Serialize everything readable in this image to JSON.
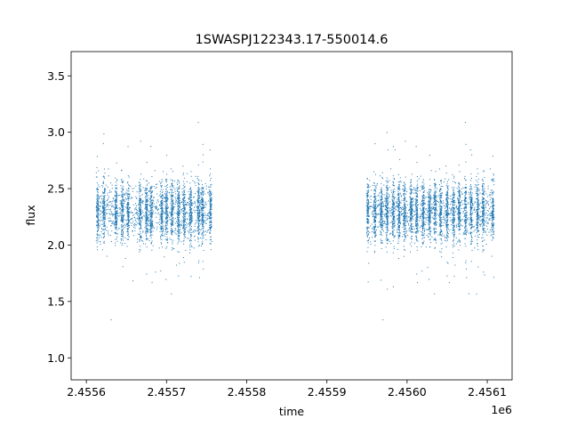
{
  "chart_data": {
    "type": "scatter",
    "title": "1SWASPJ122343.17-550014.6",
    "xlabel": "time",
    "ylabel": "flux",
    "x_offset_label": "1e6",
    "xlim": [
      2.455581,
      2.456131
    ],
    "ylim": [
      0.805,
      3.715
    ],
    "x_ticks": [
      2.4556,
      2.4557,
      2.4558,
      2.4559,
      2.456,
      2.4561
    ],
    "x_tick_labels": [
      "2.4556",
      "2.4557",
      "2.4558",
      "2.4559",
      "2.4560",
      "2.4561"
    ],
    "y_ticks": [
      1.0,
      1.5,
      2.0,
      2.5,
      3.0,
      3.5
    ],
    "y_tick_labels": [
      "1.0",
      "1.5",
      "2.0",
      "2.5",
      "3.0",
      "3.5"
    ],
    "grid": false,
    "marker_color": "#1f77b4",
    "series": [
      {
        "x_range": [
          2.455614,
          2.455755
        ],
        "nights": [
          2.455614,
          2.455622,
          2.455637,
          2.455645,
          2.455652,
          2.455667,
          2.455675,
          2.455681,
          2.455694,
          2.4557,
          2.455707,
          2.455715,
          2.455722,
          2.45573,
          2.45574,
          2.455745,
          2.455755
        ],
        "typical_range": [
          1.6,
          3.1
        ],
        "median": 2.3
      },
      {
        "x_range": [
          2.455951,
          2.456107
        ],
        "nights": [
          2.455951,
          2.45596,
          2.455968,
          2.455975,
          2.455983,
          2.45599,
          2.455997,
          2.456005,
          2.456012,
          2.45602,
          2.456028,
          2.456035,
          2.456042,
          2.45605,
          2.456058,
          2.456065,
          2.456073,
          2.45608,
          2.456088,
          2.456095,
          2.456107
        ],
        "typical_range": [
          1.5,
          3.3
        ],
        "median": 2.3
      }
    ]
  }
}
